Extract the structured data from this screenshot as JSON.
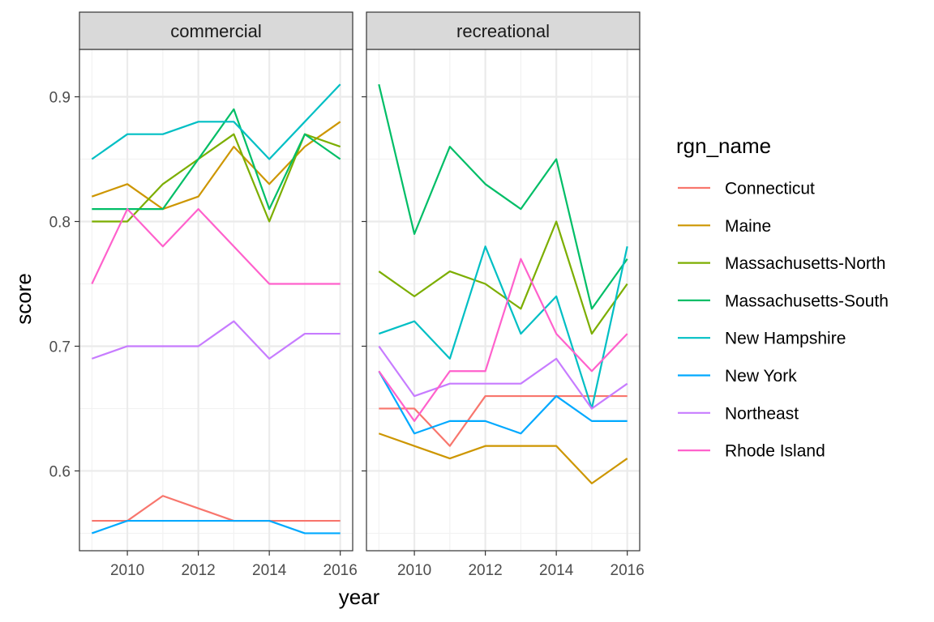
{
  "chart_data": {
    "type": "line",
    "xlabel": "year",
    "ylabel": "score",
    "x": [
      2009,
      2010,
      2011,
      2012,
      2013,
      2014,
      2015,
      2016
    ],
    "xticks": [
      "2010",
      "2012",
      "2014",
      "2016"
    ],
    "xlim": [
      2008.65,
      2016.35
    ],
    "yticks": [
      "0.6",
      "0.7",
      "0.8",
      "0.9"
    ],
    "ylim": [
      0.536,
      0.938
    ],
    "grid": true,
    "legend": {
      "title": "rgn_name",
      "position": "right",
      "entries": [
        {
          "name": "Connecticut",
          "color": "#F8766D"
        },
        {
          "name": "Maine",
          "color": "#CD9600"
        },
        {
          "name": "Massachusetts-North",
          "color": "#7CAE00"
        },
        {
          "name": "Massachusetts-South",
          "color": "#00BE67"
        },
        {
          "name": "New Hampshire",
          "color": "#00BFC4"
        },
        {
          "name": "New York",
          "color": "#00A9FF"
        },
        {
          "name": "Northeast",
          "color": "#C77CFF"
        },
        {
          "name": "Rhode Island",
          "color": "#FF61CC"
        }
      ]
    },
    "panels": [
      {
        "strip": "commercial",
        "series": [
          {
            "name": "Connecticut",
            "values": [
              0.56,
              0.56,
              0.58,
              0.57,
              0.56,
              0.56,
              0.56,
              0.56
            ]
          },
          {
            "name": "Maine",
            "values": [
              0.82,
              0.83,
              0.81,
              0.82,
              0.86,
              0.83,
              0.86,
              0.88
            ]
          },
          {
            "name": "Massachusetts-North",
            "values": [
              0.8,
              0.8,
              0.83,
              0.85,
              0.87,
              0.8,
              0.87,
              0.86
            ]
          },
          {
            "name": "Massachusetts-South",
            "values": [
              0.81,
              0.81,
              0.81,
              0.85,
              0.89,
              0.81,
              0.87,
              0.85
            ]
          },
          {
            "name": "New Hampshire",
            "values": [
              0.85,
              0.87,
              0.87,
              0.88,
              0.88,
              0.85,
              0.88,
              0.91
            ]
          },
          {
            "name": "New York",
            "values": [
              0.55,
              0.56,
              0.56,
              0.56,
              0.56,
              0.56,
              0.55,
              0.55
            ]
          },
          {
            "name": "Northeast",
            "values": [
              0.69,
              0.7,
              0.7,
              0.7,
              0.72,
              0.69,
              0.71,
              0.71
            ]
          },
          {
            "name": "Rhode Island",
            "values": [
              0.75,
              0.81,
              0.78,
              0.81,
              0.78,
              0.75,
              0.75,
              0.75
            ]
          }
        ]
      },
      {
        "strip": "recreational",
        "series": [
          {
            "name": "Connecticut",
            "values": [
              0.65,
              0.65,
              0.62,
              0.66,
              0.66,
              0.66,
              0.66,
              0.66
            ]
          },
          {
            "name": "Maine",
            "values": [
              0.63,
              0.62,
              0.61,
              0.62,
              0.62,
              0.62,
              0.59,
              0.61
            ]
          },
          {
            "name": "Massachusetts-North",
            "values": [
              0.76,
              0.74,
              0.76,
              0.75,
              0.73,
              0.8,
              0.71,
              0.75
            ]
          },
          {
            "name": "Massachusetts-South",
            "values": [
              0.91,
              0.79,
              0.86,
              0.83,
              0.81,
              0.85,
              0.73,
              0.77
            ]
          },
          {
            "name": "New Hampshire",
            "values": [
              0.71,
              0.72,
              0.69,
              0.78,
              0.71,
              0.74,
              0.65,
              0.78
            ]
          },
          {
            "name": "New York",
            "values": [
              0.68,
              0.63,
              0.64,
              0.64,
              0.63,
              0.66,
              0.64,
              0.64
            ]
          },
          {
            "name": "Northeast",
            "values": [
              0.7,
              0.66,
              0.67,
              0.67,
              0.67,
              0.69,
              0.65,
              0.67
            ]
          },
          {
            "name": "Rhode Island",
            "values": [
              0.68,
              0.64,
              0.68,
              0.68,
              0.77,
              0.71,
              0.68,
              0.71
            ]
          }
        ]
      }
    ]
  }
}
